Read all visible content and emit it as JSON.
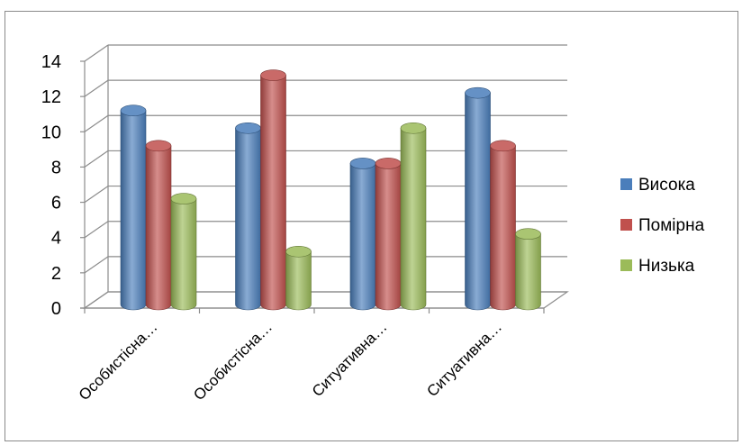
{
  "chart_data": {
    "type": "bar",
    "title": "",
    "xlabel": "",
    "ylabel": "",
    "ylim": [
      0,
      14
    ],
    "yticks": [
      0,
      2,
      4,
      6,
      8,
      10,
      12,
      14
    ],
    "grid": true,
    "legend": "right",
    "categories": [
      "Особистісна…",
      "Особистісна…",
      "Ситуативна…",
      "Ситуативна…"
    ],
    "series": [
      {
        "name": "Висока",
        "values": [
          11,
          10,
          8,
          12
        ],
        "color": "#4a7ebb"
      },
      {
        "name": "Помірна",
        "values": [
          9,
          13,
          8,
          9
        ],
        "color": "#c0504d"
      },
      {
        "name": "Низька",
        "values": [
          6,
          3,
          10,
          4
        ],
        "color": "#9bbb59"
      }
    ]
  }
}
